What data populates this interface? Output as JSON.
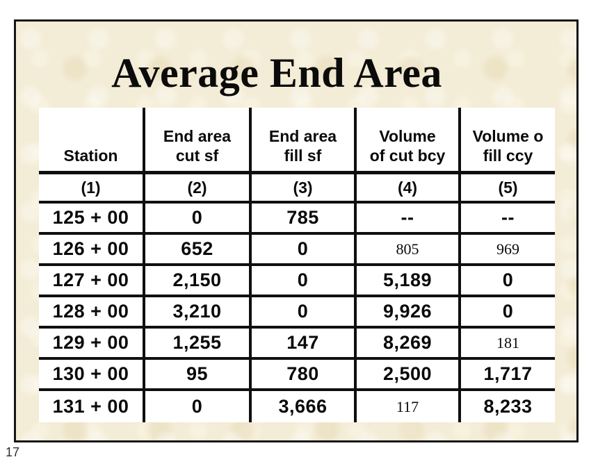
{
  "page_number": "17",
  "colors": {
    "slide_background": "#f3ecd6",
    "slide_border": "#161616",
    "table_background": "#ffffff",
    "table_lines": "#0f0f0f",
    "text": "#0a0a0a"
  },
  "slide": {
    "title": "Average End Area",
    "table": {
      "headers": [
        {
          "lines": [
            "Station"
          ]
        },
        {
          "lines": [
            "End area",
            "cut sf"
          ]
        },
        {
          "lines": [
            "End area",
            "fill sf"
          ]
        },
        {
          "lines": [
            "Volume",
            "of cut bcy"
          ]
        },
        {
          "lines": [
            "Volume o",
            "fill ccy"
          ]
        }
      ],
      "column_numbers": [
        "(1)",
        "(2)",
        "(3)",
        "(4)",
        "(5)"
      ],
      "rows": [
        {
          "cells": [
            {
              "text": "125 + 00"
            },
            {
              "text": "0"
            },
            {
              "text": "785"
            },
            {
              "text": "--"
            },
            {
              "text": "--"
            }
          ]
        },
        {
          "cells": [
            {
              "text": "126 + 00"
            },
            {
              "text": "652"
            },
            {
              "text": "0"
            },
            {
              "text": "805",
              "serif": true
            },
            {
              "text": "969",
              "serif": true
            }
          ]
        },
        {
          "cells": [
            {
              "text": "127 + 00"
            },
            {
              "text": "2,150"
            },
            {
              "text": "0"
            },
            {
              "text": "5,189"
            },
            {
              "text": "0"
            }
          ]
        },
        {
          "cells": [
            {
              "text": "128 + 00"
            },
            {
              "text": "3,210"
            },
            {
              "text": "0"
            },
            {
              "text": "9,926"
            },
            {
              "text": "0"
            }
          ]
        },
        {
          "cells": [
            {
              "text": "129 + 00"
            },
            {
              "text": "1,255"
            },
            {
              "text": "147"
            },
            {
              "text": "8,269"
            },
            {
              "text": "181",
              "serif": true
            }
          ]
        },
        {
          "cells": [
            {
              "text": "130 + 00"
            },
            {
              "text": "95"
            },
            {
              "text": "780"
            },
            {
              "text": "2,500"
            },
            {
              "text": "1,717"
            }
          ]
        },
        {
          "cells": [
            {
              "text": "131 + 00"
            },
            {
              "text": "0"
            },
            {
              "text": "3,666"
            },
            {
              "text": "117",
              "serif": true
            },
            {
              "text": "8,233"
            }
          ]
        }
      ]
    }
  }
}
